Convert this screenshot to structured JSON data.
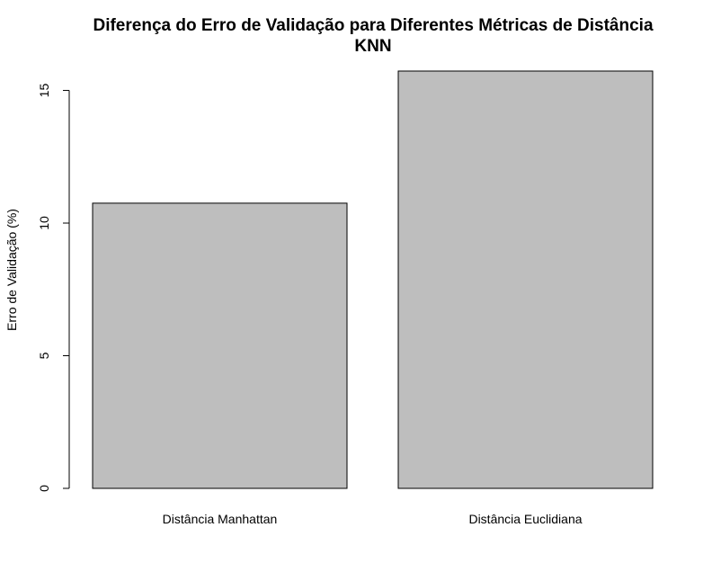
{
  "chart_data": {
    "type": "bar",
    "title": "Diferença do Erro de Validação para Diferentes Métricas de Distância",
    "subtitle": "KNN",
    "xlabel": "",
    "ylabel": "Erro de Validação (%)",
    "categories": [
      "Distância Manhattan",
      "Distância Euclidiana"
    ],
    "values": [
      10.75,
      15.73
    ],
    "ylim": [
      0,
      15.73
    ],
    "yticks": [
      0,
      5,
      10,
      15
    ],
    "bar_color": "#bebebe",
    "grid": false,
    "legend": "none"
  }
}
